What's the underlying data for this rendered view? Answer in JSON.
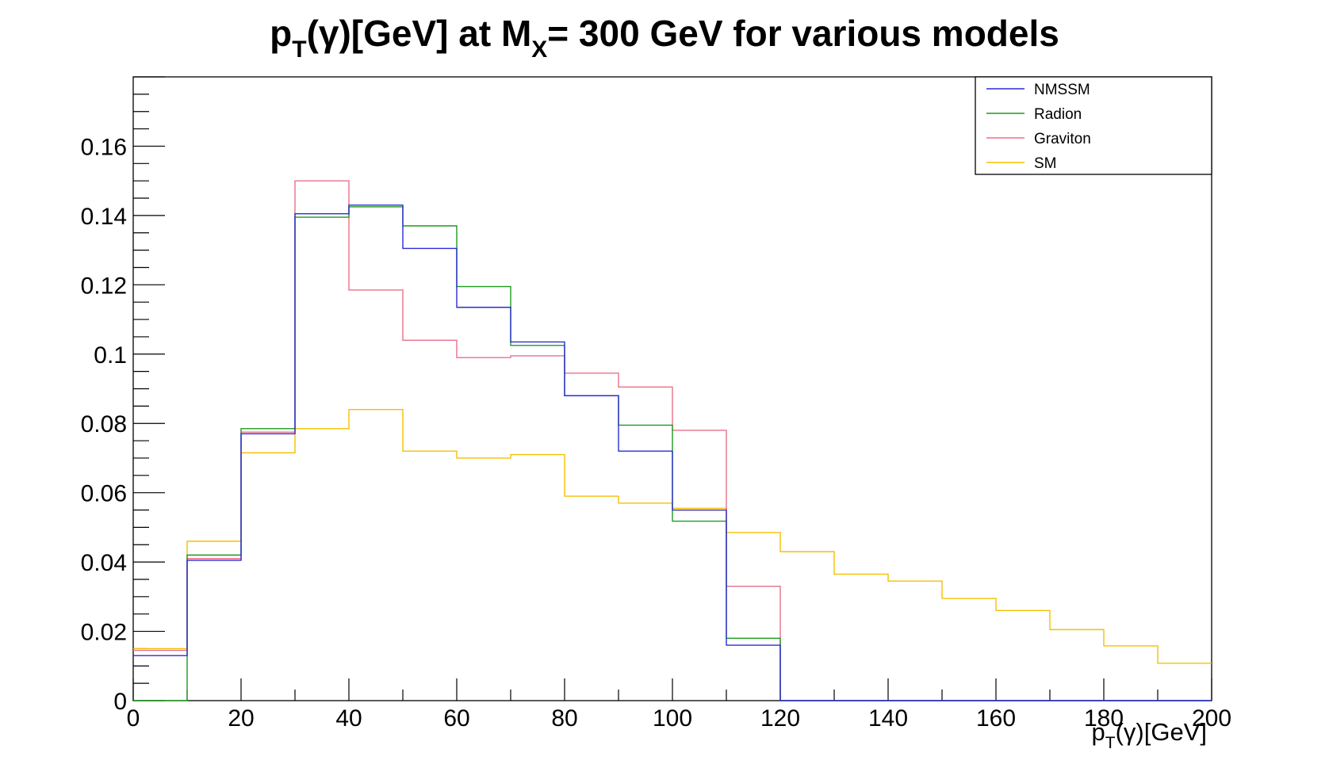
{
  "chart_data": {
    "type": "line",
    "step": true,
    "title": {
      "p": "p",
      "p_sub": "T",
      "mid": "(γ)[GeV] at M",
      "m_sub": "X",
      "end": "= 300 GeV for various models"
    },
    "xlabel": {
      "p": "p",
      "sub": "T",
      "rest": "(γ)[GeV]"
    },
    "ylabel": "",
    "xlim": [
      0,
      200
    ],
    "ylim": [
      0,
      0.18
    ],
    "x_ticks": [
      "0",
      "20",
      "40",
      "60",
      "80",
      "100",
      "120",
      "140",
      "160",
      "180",
      "200"
    ],
    "y_ticks": [
      "0",
      "0.02",
      "0.04",
      "0.06",
      "0.08",
      "0.1",
      "0.12",
      "0.14",
      "0.16"
    ],
    "grid": false,
    "legend_position": "top-right",
    "bin_edges": [
      0,
      10,
      20,
      30,
      40,
      50,
      60,
      70,
      80,
      90,
      100,
      110,
      120,
      130,
      140,
      150,
      160,
      170,
      180,
      190,
      200
    ],
    "series": [
      {
        "name": "NMSSM",
        "color": "#2b2bd6",
        "values": [
          0.013,
          0.0405,
          0.077,
          0.1405,
          0.143,
          0.1305,
          0.1135,
          0.1035,
          0.088,
          0.072,
          0.055,
          0.016,
          0,
          0,
          0,
          0,
          0,
          0,
          0,
          0
        ]
      },
      {
        "name": "Radion",
        "color": "#1f9a1f",
        "values": [
          0,
          0.042,
          0.0785,
          0.1395,
          0.1425,
          0.137,
          0.1195,
          0.1025,
          0.088,
          0.0795,
          0.0518,
          0.018,
          0,
          0,
          0,
          0,
          0,
          0,
          0,
          0
        ]
      },
      {
        "name": "Graviton",
        "color": "#e8708a",
        "values": [
          0.0145,
          0.041,
          0.0775,
          0.15,
          0.1185,
          0.104,
          0.099,
          0.0995,
          0.0945,
          0.0905,
          0.078,
          0.033,
          0,
          0,
          0,
          0,
          0,
          0,
          0,
          0
        ]
      },
      {
        "name": "SM",
        "color": "#f5c000",
        "values": [
          0.015,
          0.046,
          0.0715,
          0.0785,
          0.084,
          0.072,
          0.07,
          0.071,
          0.059,
          0.057,
          0.0555,
          0.0485,
          0.043,
          0.0365,
          0.0345,
          0.0295,
          0.026,
          0.0205,
          0.0158,
          0.0108
        ]
      }
    ]
  }
}
